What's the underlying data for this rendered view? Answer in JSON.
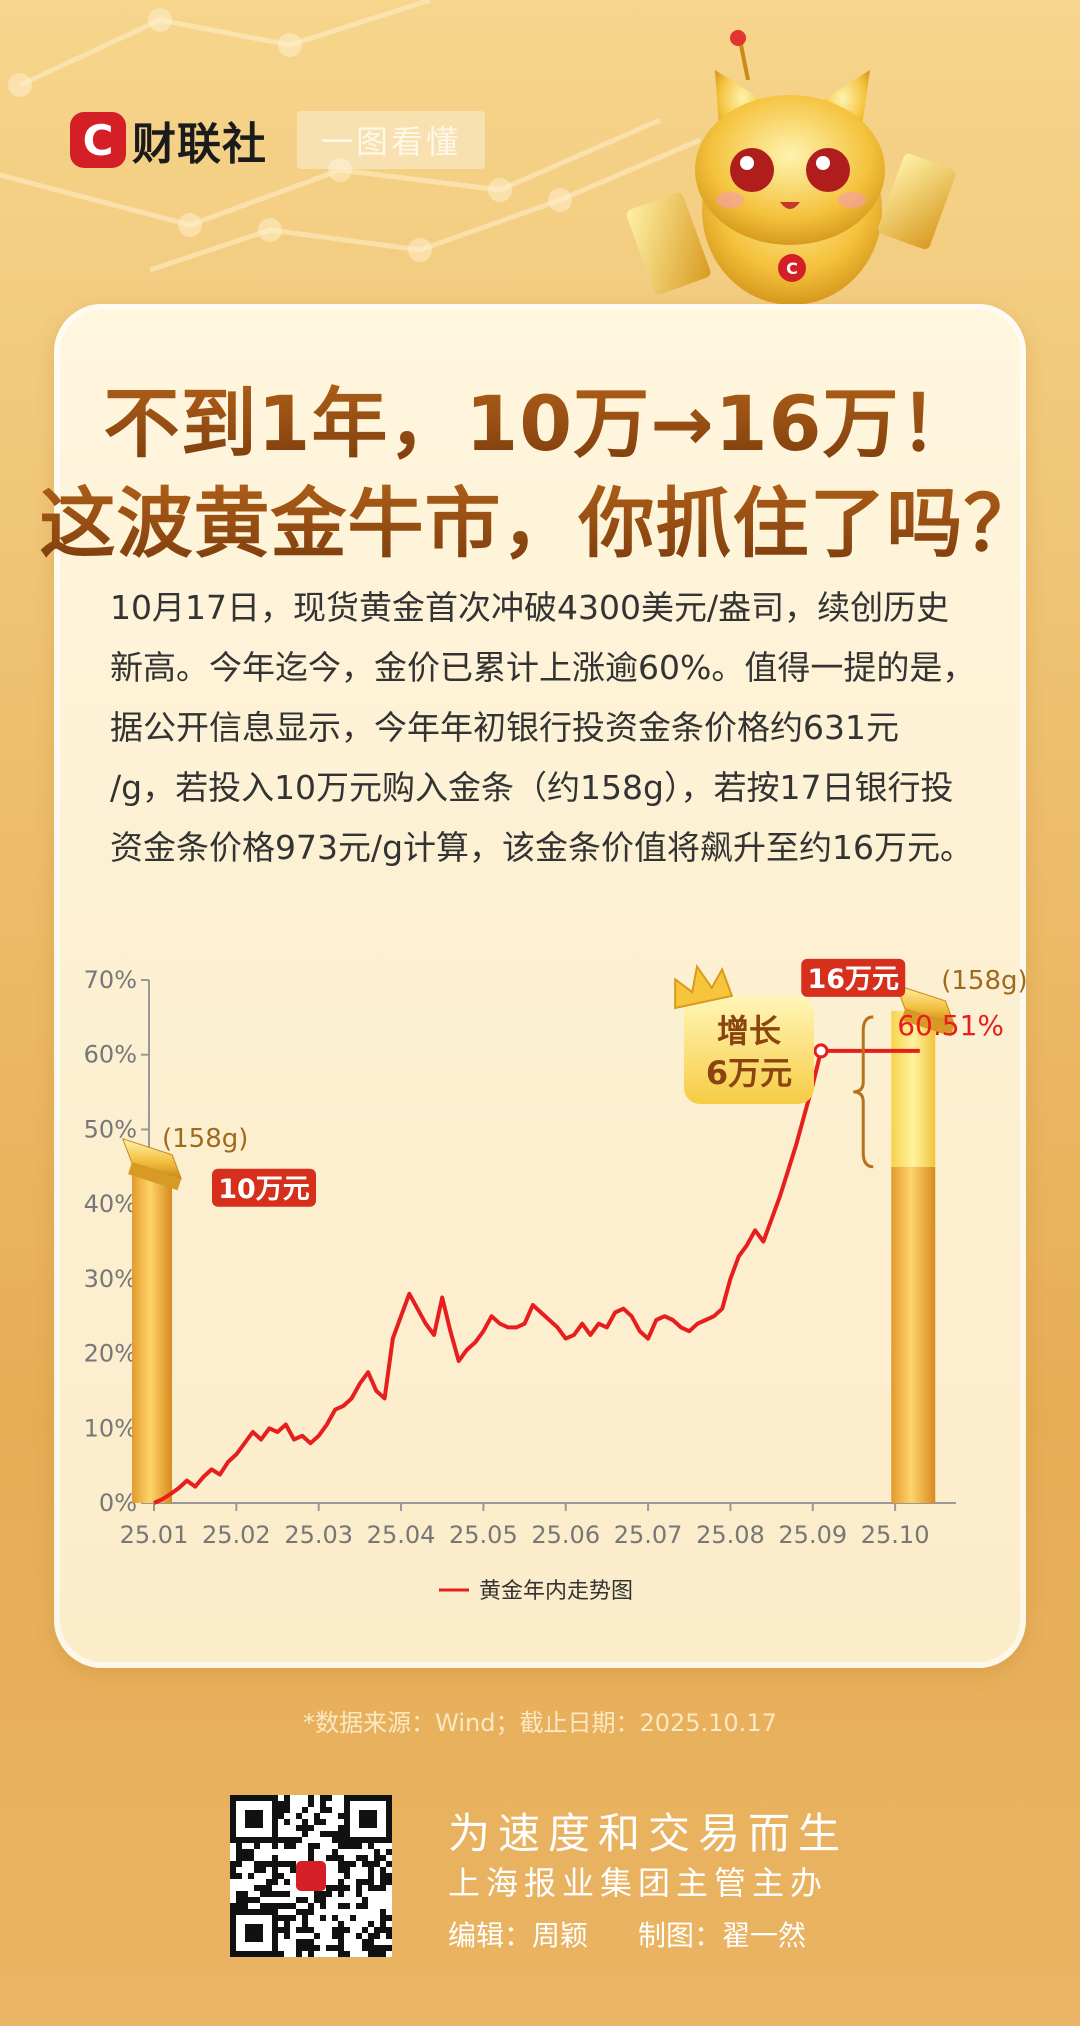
{
  "brand": {
    "logo_letter": "C",
    "name": "财联社",
    "tag": "一图看懂"
  },
  "title": {
    "line1": "不到1年，10万→16万！",
    "line2": "这波黄金牛市，你抓住了吗？"
  },
  "body_lines": [
    "10月17日，现货黄金首次冲破4300美元/盎司，续创历史",
    "新高。今年迄今，金价已累计上涨逾60%。值得一提的是，",
    "据公开信息显示，今年年初银行投资金条价格约631元",
    "/g，若投入10万元购入金条（约158g），若按17日银行投",
    "资金条价格973元/g计算，该金条价值将飙升至约16万元。"
  ],
  "annotations": {
    "start_weight": "(158g)",
    "start_value": "10万元",
    "end_weight": "(158g)",
    "end_value": "16万元",
    "growth_line1": "增长",
    "growth_line2": "6万元",
    "end_pct": "60.51%"
  },
  "chart_data": {
    "type": "line",
    "ylim": [
      0,
      70
    ],
    "yticks": [
      "0%",
      "10%",
      "20%",
      "30%",
      "40%",
      "50%",
      "60%",
      "70%"
    ],
    "x_tick_labels": [
      "25.01",
      "25.02",
      "25.03",
      "25.04",
      "25.05",
      "25.06",
      "25.07",
      "25.08",
      "25.09",
      "25.10"
    ],
    "series": [
      {
        "name": "黄金年内走势图",
        "color": "#e61e1e",
        "x_month": [
          0.0,
          0.1,
          0.2,
          0.3,
          0.4,
          0.5,
          0.6,
          0.7,
          0.8,
          0.9,
          1.0,
          1.1,
          1.2,
          1.3,
          1.4,
          1.5,
          1.6,
          1.7,
          1.8,
          1.9,
          2.0,
          2.1,
          2.2,
          2.3,
          2.4,
          2.5,
          2.6,
          2.7,
          2.8,
          2.9,
          3.0,
          3.1,
          3.2,
          3.3,
          3.4,
          3.5,
          3.6,
          3.7,
          3.8,
          3.9,
          4.0,
          4.1,
          4.2,
          4.3,
          4.4,
          4.5,
          4.6,
          4.7,
          4.8,
          4.9,
          5.0,
          5.1,
          5.2,
          5.3,
          5.4,
          5.5,
          5.6,
          5.7,
          5.8,
          5.9,
          6.0,
          6.1,
          6.2,
          6.3,
          6.4,
          6.5,
          6.6,
          6.7,
          6.8,
          6.9,
          7.0,
          7.1,
          7.2,
          7.3,
          7.4,
          7.5,
          7.6,
          7.7,
          7.8,
          7.9,
          8.0,
          8.1,
          8.2,
          8.3,
          8.4,
          8.5,
          8.6,
          8.7,
          8.8,
          8.9,
          9.0,
          9.1,
          9.2,
          9.3
        ],
        "values": [
          0.0,
          0.5,
          1.2,
          2.0,
          3.0,
          2.2,
          3.5,
          4.5,
          3.8,
          5.5,
          6.5,
          8.0,
          9.5,
          8.5,
          10.0,
          9.5,
          10.5,
          8.5,
          9.0,
          8.0,
          9.0,
          10.5,
          12.5,
          13.0,
          14.0,
          16.0,
          17.5,
          15.0,
          14.0,
          22.0,
          25.0,
          28.0,
          26.0,
          24.0,
          22.5,
          27.5,
          23.0,
          19.0,
          20.5,
          21.5,
          23.0,
          25.0,
          24.0,
          23.5,
          23.5,
          24.0,
          26.5,
          25.5,
          24.5,
          23.5,
          22.0,
          22.5,
          24.0,
          22.5,
          24.0,
          23.5,
          25.5,
          26.0,
          25.0,
          23.0,
          22.0,
          24.5,
          25.0,
          24.5,
          23.5,
          23.0,
          24.0,
          24.5,
          25.0,
          26.0,
          30.0,
          33.0,
          34.5,
          36.5,
          35.0,
          38.0,
          41.0,
          44.5,
          48.0,
          52.0,
          56.0,
          60.51,
          60.51,
          60.51,
          60.51,
          60.51,
          60.51,
          60.51,
          60.51,
          60.51,
          60.51,
          60.51,
          60.51,
          60.51
        ]
      }
    ],
    "legend": "bottom"
  },
  "source": "*数据来源：Wind；截止日期：2025.10.17",
  "footer": {
    "slogan": "为速度和交易而生",
    "subtitle": "上海报业集团主管主办",
    "editor": "编辑：周颖",
    "designer": "制图：翟一然"
  },
  "colors": {
    "accent_red": "#e61e1e",
    "brand_red": "#d41f26",
    "title_brown": "#8a4410",
    "gold": "#f3b944"
  }
}
